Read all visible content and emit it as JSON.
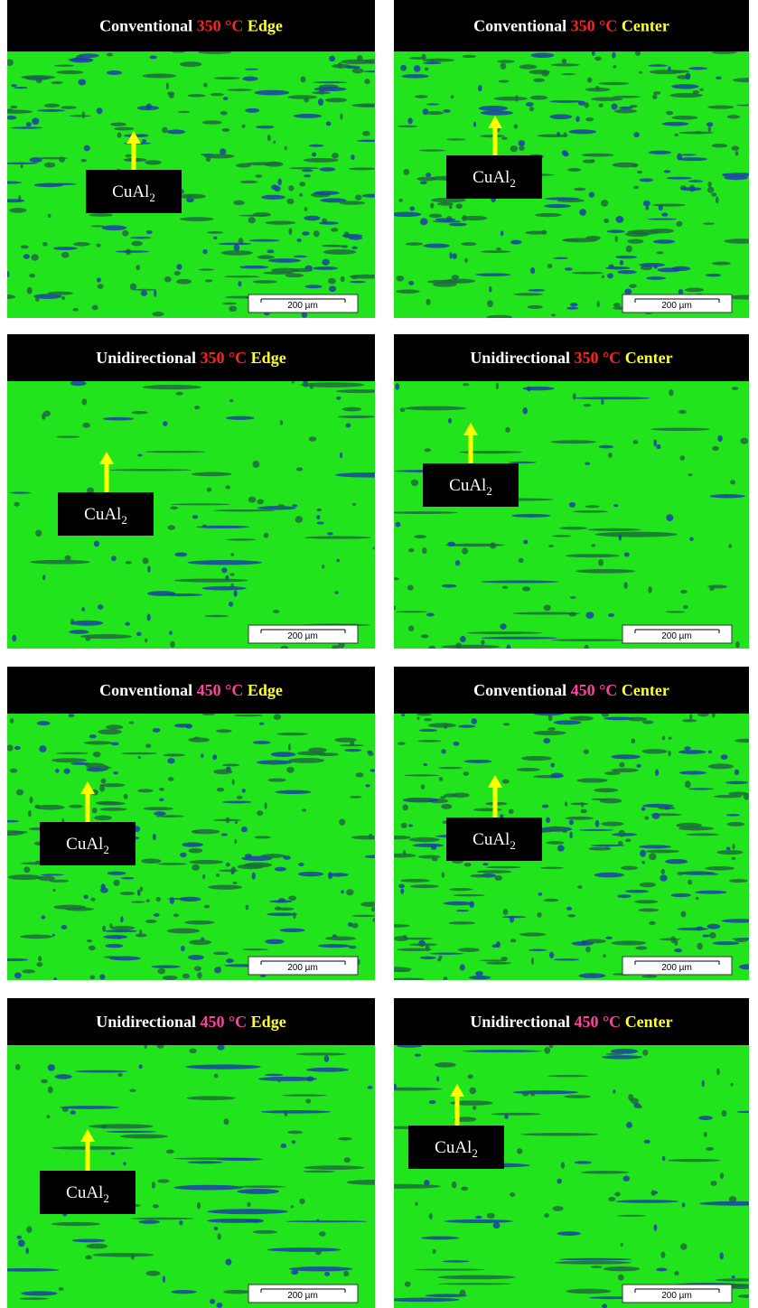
{
  "panels": [
    {
      "title": {
        "process": "Conventional",
        "temperature": "350 °C",
        "position": "Edge"
      },
      "label": {
        "text": "CuAl",
        "subscript": "2"
      },
      "scale_bar": "200 µm"
    },
    {
      "title": {
        "process": "Conventional",
        "temperature": "350 °C",
        "position": "Center"
      },
      "label": {
        "text": "CuAl",
        "subscript": "2"
      },
      "scale_bar": "200 µm"
    },
    {
      "title": {
        "process": "Unidirectional",
        "temperature": "350 °C",
        "position": "Edge"
      },
      "label": {
        "text": "CuAl",
        "subscript": "2"
      },
      "scale_bar": "200 µm"
    },
    {
      "title": {
        "process": "Unidirectional",
        "temperature": "350 °C",
        "position": "Center"
      },
      "label": {
        "text": "CuAl",
        "subscript": "2"
      },
      "scale_bar": "200 µm"
    },
    {
      "title": {
        "process": "Conventional",
        "temperature": "450 °C",
        "position": "Edge"
      },
      "label": {
        "text": "CuAl",
        "subscript": "2"
      },
      "scale_bar": "200 µm"
    },
    {
      "title": {
        "process": "Conventional",
        "temperature": "450 °C",
        "position": "Center"
      },
      "label": {
        "text": "CuAl",
        "subscript": "2"
      },
      "scale_bar": "200 µm"
    },
    {
      "title": {
        "process": "Unidirectional",
        "temperature": "450 °C",
        "position": "Edge"
      },
      "label": {
        "text": "CuAl",
        "subscript": "2"
      },
      "scale_bar": "200 µm"
    },
    {
      "title": {
        "process": "Unidirectional",
        "temperature": "450 °C",
        "position": "Center"
      },
      "label": {
        "text": "CuAl",
        "subscript": "2"
      },
      "scale_bar": "200 µm"
    }
  ]
}
